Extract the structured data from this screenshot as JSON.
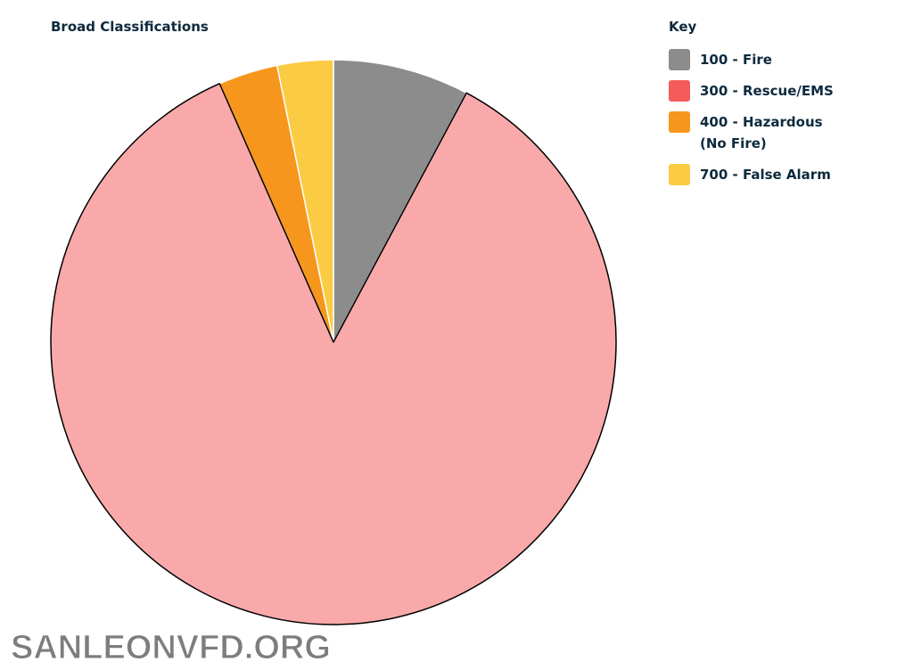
{
  "chart_data": {
    "type": "pie",
    "title": "Broad Classifications",
    "legend_title": "Key",
    "categories": [
      "100 - Fire",
      "300 - Rescue/EMS",
      "400 - Hazardous (No Fire)",
      "700 - False Alarm"
    ],
    "values": [
      7.8,
      85.6,
      3.4,
      3.2
    ],
    "colors": [
      "#8c8c8c",
      "#f45b5b",
      "#f7961c",
      "#fbcb43"
    ],
    "legend": "top-right"
  },
  "watermark": "SANLEONVFD.ORG"
}
